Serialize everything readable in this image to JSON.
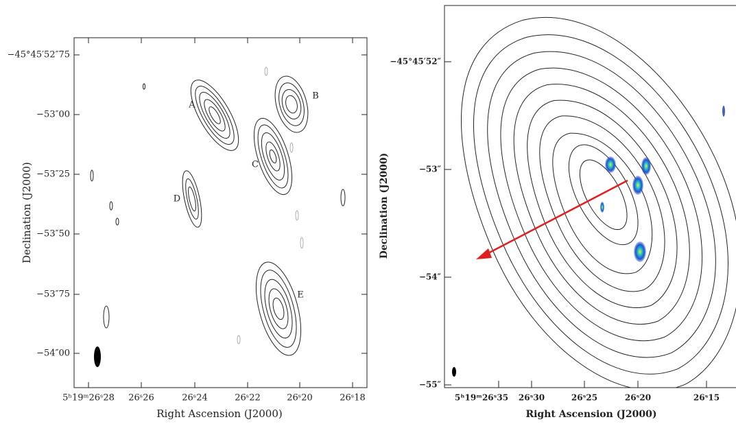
{
  "left_panel": {
    "x_axis_label": "Right Ascension (J2000)",
    "y_axis_label": "Declination (J2000)",
    "x_tick_labels": [
      "5ʰ19ᵐ26ˢ28",
      "26ˢ26",
      "26ˢ24",
      "26ˢ22",
      "26ˢ20",
      "26ˢ18"
    ],
    "y_tick_labels": [
      "−45°45′52″75",
      "−53″00",
      "−53″25",
      "−53″50",
      "−53″75",
      "−54″00"
    ],
    "source_labels": [
      "A",
      "B",
      "C",
      "D",
      "E"
    ]
  },
  "right_panel": {
    "x_axis_label": "Right Ascension (J2000)",
    "y_axis_label": "Declination (J2000)",
    "x_tick_labels": [
      "5ʰ19ᵐ26ˢ35",
      "26ˢ30",
      "26ˢ25",
      "26ˢ20",
      "26ˢ15"
    ],
    "y_tick_labels": [
      "−45°45′52″",
      "−53″",
      "−54″",
      "−55″"
    ]
  }
}
